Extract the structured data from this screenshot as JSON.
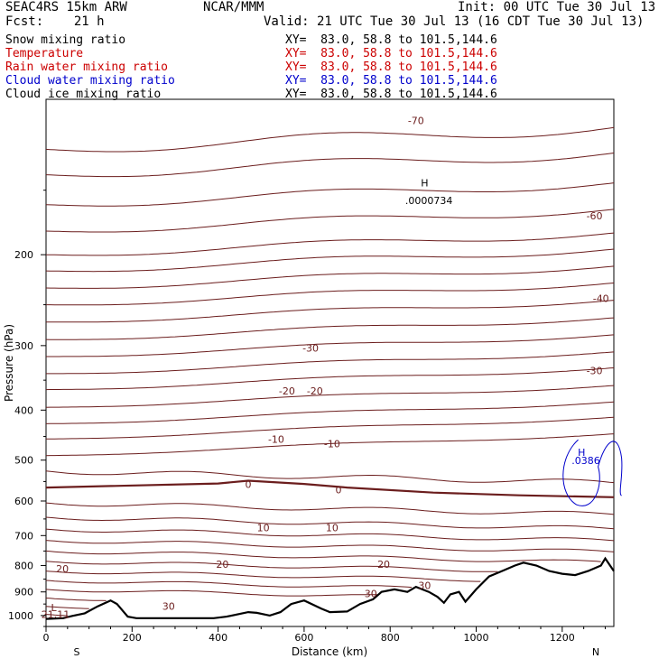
{
  "header": {
    "model": "SEAC4RS 15km ARW",
    "center": "NCAR/MMM",
    "init": "Init: 00 UTC Tue 30 Jul 13",
    "fcst": "Fcst:    21 h",
    "valid": "Valid: 21 UTC Tue 30 Jul 13 (16 CDT Tue 30 Jul 13)"
  },
  "fields": [
    {
      "name": "Snow mixing ratio",
      "xy": "XY=  83.0, 58.8 to 101.5,144.6",
      "name_color": "#000000",
      "xy_color": "#000000"
    },
    {
      "name": "Temperature",
      "xy": "XY=  83.0, 58.8 to 101.5,144.6",
      "name_color": "#cc0000",
      "xy_color": "#cc0000"
    },
    {
      "name": "Rain water mixing ratio",
      "xy": "XY=  83.0, 58.8 to 101.5,144.6",
      "name_color": "#cc0000",
      "xy_color": "#cc0000"
    },
    {
      "name": "Cloud water mixing ratio",
      "xy": "XY=  83.0, 58.8 to 101.5,144.6",
      "name_color": "#0000cc",
      "xy_color": "#0000cc"
    },
    {
      "name": "Cloud ice mixing ratio",
      "xy": "XY=  83.0, 58.8 to 101.5,144.6",
      "name_color": "#000000",
      "xy_color": "#000000"
    }
  ],
  "colors": {
    "temperature": "#6b1d1d",
    "cloud_water": "#0000cc",
    "terrain": "#000000"
  },
  "chart_data": {
    "type": "line",
    "xlabel": "Distance (km)",
    "ylabel": "Pressure (hPa)",
    "xlim": [
      0,
      1320
    ],
    "ylim": [
      1050,
      100
    ],
    "y_scale": "log",
    "x_ticks": [
      0,
      200,
      400,
      600,
      800,
      1000,
      1200
    ],
    "y_ticks": [
      200,
      300,
      400,
      500,
      600,
      700,
      800,
      900,
      1000
    ],
    "x_end_labels": [
      "S",
      "N"
    ],
    "temperature_contour_labels": [
      {
        "text": "-70",
        "x": 860,
        "p": 110
      },
      {
        "text": "-60",
        "x": 1275,
        "p": 168
      },
      {
        "text": "-40",
        "x": 1290,
        "p": 243
      },
      {
        "text": "-30",
        "x": 615,
        "p": 303
      },
      {
        "text": "-30",
        "x": 1275,
        "p": 335
      },
      {
        "text": "-20",
        "x": 560,
        "p": 367
      },
      {
        "text": "-20",
        "x": 625,
        "p": 367
      },
      {
        "text": "-10",
        "x": 535,
        "p": 455
      },
      {
        "text": "-10",
        "x": 665,
        "p": 465
      },
      {
        "text": "0",
        "x": 470,
        "p": 557
      },
      {
        "text": "0",
        "x": 680,
        "p": 570
      },
      {
        "text": "10",
        "x": 505,
        "p": 676
      },
      {
        "text": "10",
        "x": 665,
        "p": 676
      },
      {
        "text": "20",
        "x": 410,
        "p": 796
      },
      {
        "text": "20",
        "x": 785,
        "p": 795
      },
      {
        "text": "20",
        "x": 38,
        "p": 812
      },
      {
        "text": "30",
        "x": 880,
        "p": 875
      },
      {
        "text": "30",
        "x": 755,
        "p": 907
      },
      {
        "text": "30",
        "x": 285,
        "p": 960
      }
    ],
    "other_labels": [
      {
        "text": "H",
        "x": 880,
        "p": 145
      },
      {
        "text": ".0000734",
        "x": 890,
        "p": 157
      },
      {
        "text": "H",
        "x": 1245,
        "p": 483
      },
      {
        "text": ".0386",
        "x": 1255,
        "p": 501
      },
      {
        "text": "L",
        "x": 18,
        "p": 965
      },
      {
        "text": "21.11",
        "x": 22,
        "p": 995
      }
    ],
    "temperature_isotherms_C": [
      -70,
      -60,
      -50,
      -40,
      -30,
      -20,
      -10,
      0,
      10,
      20,
      30
    ],
    "freezing_level_hPa": [
      [
        0,
        565
      ],
      [
        400,
        555
      ],
      [
        470,
        548
      ],
      [
        600,
        556
      ],
      [
        700,
        565
      ],
      [
        900,
        578
      ],
      [
        1100,
        585
      ],
      [
        1320,
        590
      ]
    ],
    "terrain_pressure_hPa": [
      [
        0,
        1015
      ],
      [
        40,
        1012
      ],
      [
        60,
        1002
      ],
      [
        90,
        990
      ],
      [
        120,
        960
      ],
      [
        150,
        935
      ],
      [
        165,
        950
      ],
      [
        190,
        1005
      ],
      [
        210,
        1012
      ],
      [
        300,
        1012
      ],
      [
        390,
        1012
      ],
      [
        420,
        1005
      ],
      [
        470,
        985
      ],
      [
        490,
        988
      ],
      [
        520,
        1000
      ],
      [
        545,
        985
      ],
      [
        570,
        950
      ],
      [
        600,
        935
      ],
      [
        640,
        970
      ],
      [
        660,
        985
      ],
      [
        700,
        982
      ],
      [
        730,
        950
      ],
      [
        760,
        930
      ],
      [
        780,
        900
      ],
      [
        810,
        890
      ],
      [
        840,
        900
      ],
      [
        860,
        880
      ],
      [
        890,
        900
      ],
      [
        910,
        920
      ],
      [
        925,
        945
      ],
      [
        940,
        910
      ],
      [
        960,
        900
      ],
      [
        975,
        940
      ],
      [
        1000,
        890
      ],
      [
        1030,
        840
      ],
      [
        1060,
        820
      ],
      [
        1090,
        800
      ],
      [
        1110,
        790
      ],
      [
        1140,
        800
      ],
      [
        1170,
        820
      ],
      [
        1200,
        830
      ],
      [
        1230,
        835
      ],
      [
        1260,
        820
      ],
      [
        1290,
        800
      ],
      [
        1300,
        775
      ],
      [
        1320,
        820
      ]
    ],
    "cloud_water_max_gkg": 0.0386,
    "cloud_ice_max_gkg": 7.34e-05,
    "surface_temperature_min_C": 21.11
  }
}
